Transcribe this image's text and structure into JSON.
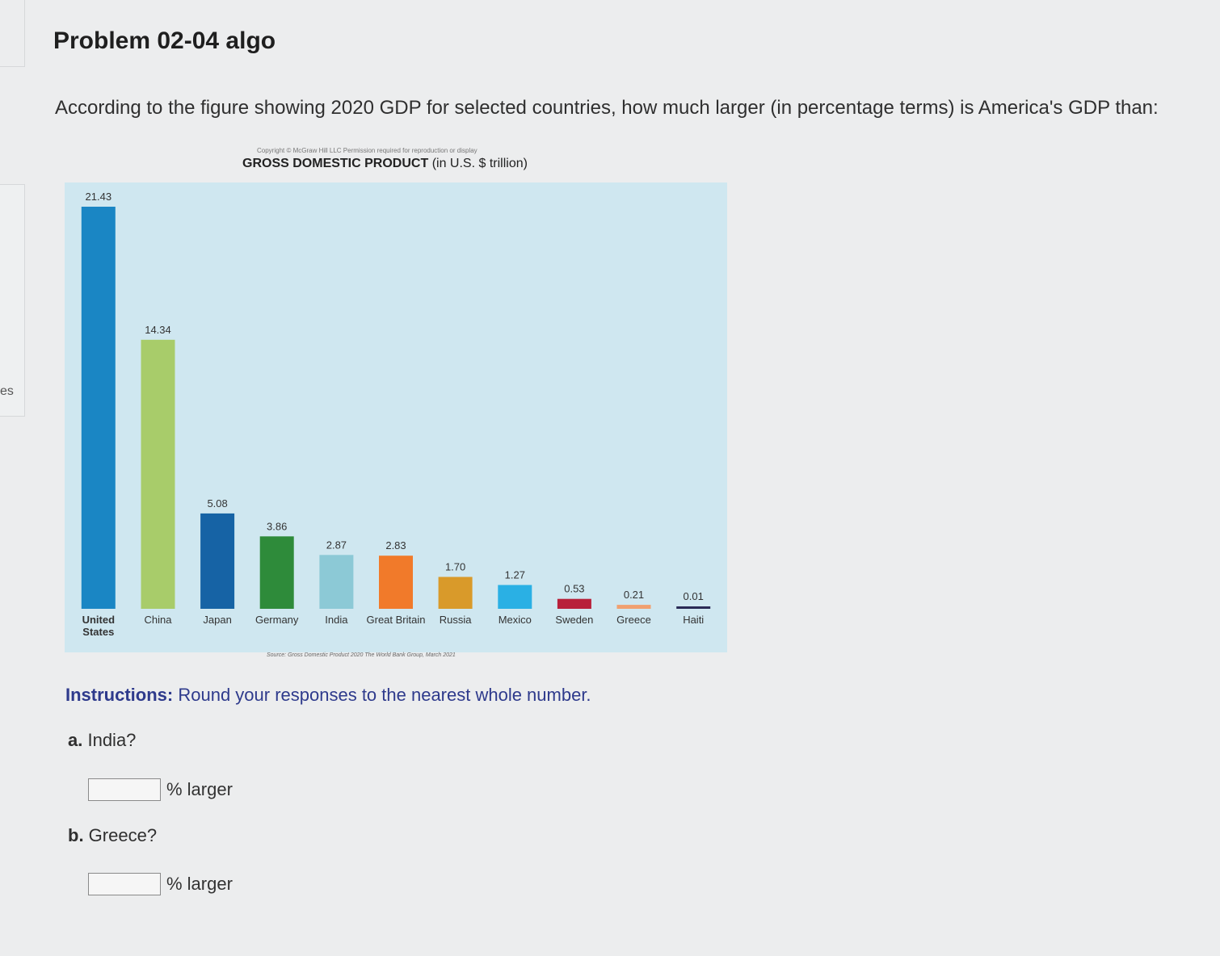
{
  "sidebar": {
    "tab_label": "es"
  },
  "page": {
    "title": "Problem 02-04 algo",
    "question": "According to the figure showing 2020 GDP for selected countries, how much larger (in percentage terms) is America's GDP than:"
  },
  "chart_data": {
    "type": "bar",
    "copyright": "Copyright © McGraw Hill LLC Permission required for reproduction or display",
    "title": "GROSS DOMESTIC PRODUCT",
    "unit": "(in U.S. $ trillion)",
    "source": "Source: Gross Domestic Product 2020 The World Bank Group, March 2021",
    "categories": [
      "United States",
      "China",
      "Japan",
      "Germany",
      "India",
      "Great Britain",
      "Russia",
      "Mexico",
      "Sweden",
      "Greece",
      "Haiti"
    ],
    "category_lines": [
      [
        "United",
        "States"
      ],
      [
        "China"
      ],
      [
        "Japan"
      ],
      [
        "Germany"
      ],
      [
        "India"
      ],
      [
        "Great Britain"
      ],
      [
        "Russia"
      ],
      [
        "Mexico"
      ],
      [
        "Sweden"
      ],
      [
        "Greece"
      ],
      [
        "Haiti"
      ]
    ],
    "values": [
      21.43,
      14.34,
      5.08,
      3.86,
      2.87,
      2.83,
      1.7,
      1.27,
      0.53,
      0.21,
      0.01
    ],
    "value_labels": [
      "21.43",
      "14.34",
      "5.08",
      "3.86",
      "2.87",
      "2.83",
      "1.70",
      "1.27",
      "0.53",
      "0.21",
      "0.01"
    ],
    "colors": [
      "#1a86c4",
      "#a8cc6a",
      "#1663a5",
      "#2e8b3a",
      "#8cc9d6",
      "#f17a2a",
      "#d99a2a",
      "#2ab0e4",
      "#b8203a",
      "#f0a070",
      "#2a2a55"
    ],
    "background_color": "#cfe7f0",
    "ylim": [
      0,
      21.43
    ],
    "grid": false,
    "legend": "none"
  },
  "instructions": {
    "prefix": "Instructions:",
    "text": " Round your responses to the nearest whole number."
  },
  "questions": [
    {
      "letter": "a.",
      "text": " India?",
      "suffix": "% larger",
      "value": ""
    },
    {
      "letter": "b.",
      "text": " Greece?",
      "suffix": "% larger",
      "value": ""
    }
  ]
}
